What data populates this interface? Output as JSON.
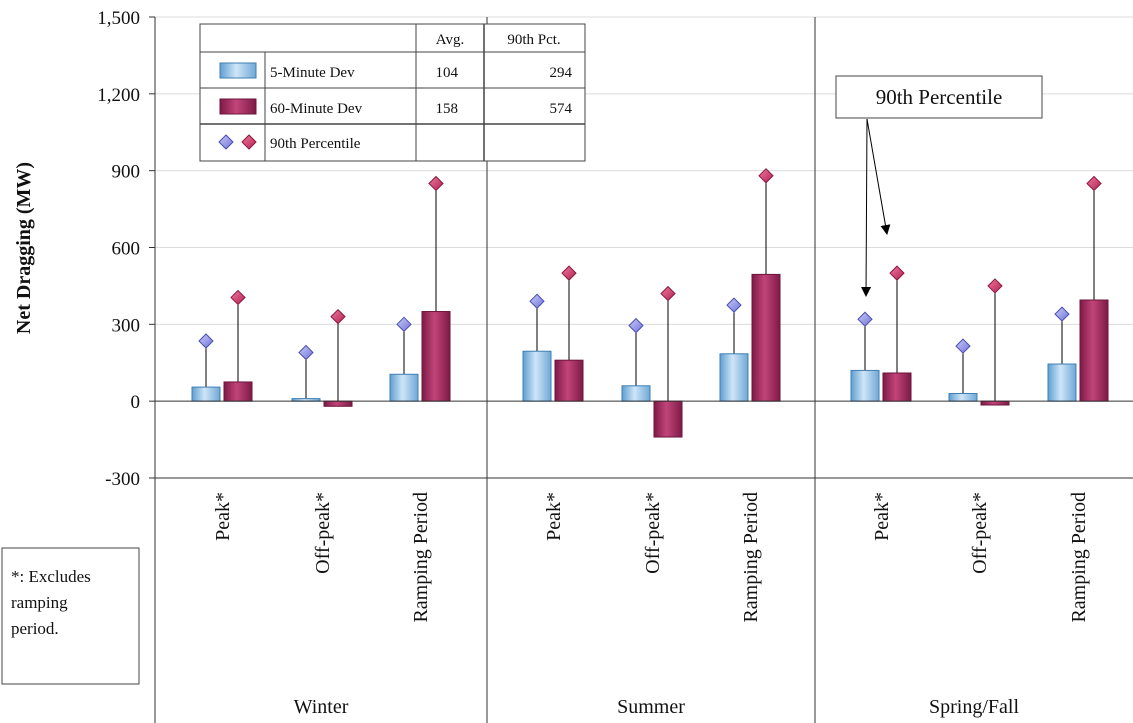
{
  "chart_data": {
    "type": "bar",
    "ylabel": "Net Dragging (MW)",
    "ylim": [
      -300,
      1500
    ],
    "yticks": [
      "1,500",
      "1,200",
      "900",
      "600",
      "300",
      "0",
      "-300"
    ],
    "yticks_values": [
      1500,
      1200,
      900,
      600,
      300,
      0,
      -300
    ],
    "grid": true,
    "groups": [
      "Winter",
      "Summer",
      "Spring/Fall"
    ],
    "categories": [
      "Peak*",
      "Off-peak*",
      "Ramping Period"
    ],
    "series": [
      {
        "name": "5-Minute Dev",
        "color": "#8cc0e6",
        "values": [
          [
            55,
            10,
            105
          ],
          [
            195,
            60,
            185
          ],
          [
            120,
            30,
            145
          ]
        ],
        "p90": [
          [
            235,
            190,
            300
          ],
          [
            390,
            295,
            375
          ],
          [
            320,
            215,
            340
          ]
        ]
      },
      {
        "name": "60-Minute Dev",
        "color": "#a12a5e",
        "values": [
          [
            75,
            -20,
            350
          ],
          [
            160,
            -140,
            495
          ],
          [
            110,
            -15,
            395
          ]
        ],
        "p90": [
          [
            405,
            330,
            850
          ],
          [
            500,
            420,
            880
          ],
          [
            500,
            450,
            850
          ]
        ]
      }
    ]
  },
  "legend": {
    "headers": [
      "",
      "Avg.",
      "90th Pct."
    ],
    "rows": [
      {
        "label": "5-Minute Dev",
        "avg": "104",
        "pct": "294"
      },
      {
        "label": "60-Minute Dev",
        "avg": "158",
        "pct": "574"
      }
    ],
    "marker_row_label": "90th Percentile"
  },
  "callout": "90th Percentile",
  "footnote": [
    "*: Excludes",
    "ramping",
    "period."
  ],
  "colors": {
    "p90_marker_5min": "#8f93e8",
    "p90_marker_60min": "#d53a6a",
    "gridline": "#dcdcdc",
    "axis": "#333333"
  }
}
